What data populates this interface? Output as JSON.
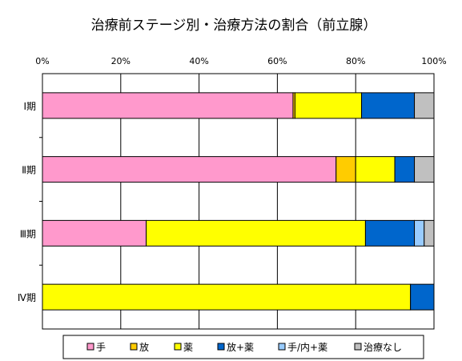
{
  "chart_data": {
    "type": "bar",
    "orientation": "horizontal",
    "stacked": "percent",
    "title": "治療前ステージ別・治療方法の割合（前立腺）",
    "xlabel": "",
    "ylabel": "",
    "xlim": [
      0,
      100
    ],
    "x_ticks": [
      "0%",
      "20%",
      "40%",
      "60%",
      "80%",
      "100%"
    ],
    "x_tick_values": [
      0,
      20,
      40,
      60,
      80,
      100
    ],
    "categories": [
      "Ⅰ期",
      "Ⅱ期",
      "Ⅲ期",
      "Ⅳ期"
    ],
    "series": [
      {
        "name": "手",
        "color": "#ff99cc",
        "values": [
          64,
          75,
          26.5,
          0
        ]
      },
      {
        "name": "放",
        "color": "#ffcc00",
        "values": [
          0.5,
          5,
          0,
          0
        ]
      },
      {
        "name": "薬",
        "color": "#ffff00",
        "values": [
          17,
          10,
          56,
          94
        ]
      },
      {
        "name": "放+薬",
        "color": "#0066cc",
        "values": [
          13.5,
          5,
          12.5,
          6
        ]
      },
      {
        "name": "手/内+薬",
        "color": "#99ccff",
        "values": [
          0,
          0,
          2.5,
          0
        ]
      },
      {
        "name": "治療なし",
        "color": "#c0c0c0",
        "values": [
          5,
          5,
          2.5,
          0
        ]
      }
    ],
    "grid": true,
    "legend_position": "bottom"
  }
}
